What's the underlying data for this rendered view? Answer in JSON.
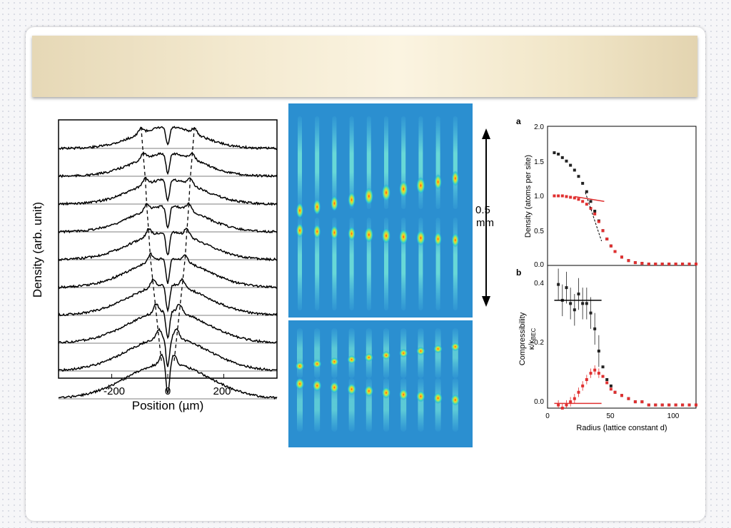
{
  "title": "",
  "left_panel": {
    "ylabel": "Density (arb. unit)",
    "xlabel": "Position (µm)",
    "xticks": [
      "-200",
      "0",
      "200"
    ]
  },
  "middle_panel": {
    "scale_value": "0.5",
    "scale_unit": "mm"
  },
  "right_panel": {
    "panel_a_label": "a",
    "panel_b_label": "b",
    "ylabel_a": "Density (atoms per site)",
    "ylabel_b_line1": "Compressibility",
    "ylabel_b_line2": "κ/κ",
    "ylabel_b_sub": "BEC",
    "xlabel": "Radius (lattice constant d)",
    "yticks_a": [
      "2.0",
      "1.5",
      "1.0",
      "0.5",
      "0.0"
    ],
    "yticks_b": [
      "0.4",
      "0.2",
      "0.0"
    ],
    "xticks": [
      "0",
      "50",
      "100"
    ]
  },
  "chart_data": [
    {
      "type": "line",
      "xlabel": "Position (µm)",
      "ylabel": "Density (arb. unit)",
      "xlim": [
        -390,
        390
      ],
      "xticks": [
        -200,
        0,
        200
      ],
      "n_profiles": 10,
      "peak_positions_um": [
        95,
        88,
        80,
        75,
        68,
        62,
        52,
        42,
        32,
        22
      ]
    },
    {
      "type": "scatter",
      "panel": "a",
      "xlabel": "Radius (lattice constant d)",
      "ylabel": "Density (atoms per site)",
      "xlim": [
        0,
        110
      ],
      "ylim": [
        0,
        2.0
      ],
      "series": [
        {
          "color": "#222222",
          "x": [
            5,
            8,
            11,
            14,
            17,
            20,
            23,
            26,
            29,
            32,
            35,
            38,
            41,
            44,
            47,
            50,
            55,
            60,
            65,
            70,
            75,
            80,
            85,
            90,
            95,
            100,
            105,
            110
          ],
          "y": [
            1.62,
            1.6,
            1.55,
            1.5,
            1.44,
            1.37,
            1.28,
            1.18,
            1.06,
            0.92,
            0.78,
            0.64,
            0.5,
            0.38,
            0.28,
            0.2,
            0.12,
            0.07,
            0.04,
            0.03,
            0.02,
            0.02,
            0.02,
            0.02,
            0.02,
            0.02,
            0.02,
            0.02
          ]
        },
        {
          "color": "#e03030",
          "x": [
            5,
            8,
            11,
            14,
            17,
            20,
            23,
            26,
            29,
            32,
            35,
            38,
            41,
            44,
            47,
            50,
            55,
            60,
            65,
            70,
            75,
            80,
            85,
            90,
            95,
            100,
            105,
            110
          ],
          "y": [
            1.0,
            1.0,
            1.0,
            0.99,
            0.98,
            0.97,
            0.95,
            0.92,
            0.88,
            0.82,
            0.74,
            0.63,
            0.5,
            0.38,
            0.28,
            0.2,
            0.12,
            0.07,
            0.04,
            0.03,
            0.02,
            0.02,
            0.02,
            0.02,
            0.02,
            0.02,
            0.02,
            0.02
          ]
        }
      ]
    },
    {
      "type": "scatter",
      "panel": "b",
      "xlabel": "Radius (lattice constant d)",
      "xlim": [
        0,
        110
      ],
      "ylim": [
        0,
        0.45
      ],
      "series": [
        {
          "color": "#222222",
          "x": [
            8,
            11,
            14,
            17,
            20,
            23,
            26,
            29,
            32,
            35,
            38,
            41,
            44,
            47,
            50,
            55,
            60,
            65,
            70,
            75,
            80,
            85,
            90,
            95,
            100,
            105,
            110
          ],
          "y": [
            0.39,
            0.34,
            0.38,
            0.33,
            0.31,
            0.36,
            0.33,
            0.33,
            0.3,
            0.25,
            0.18,
            0.13,
            0.09,
            0.07,
            0.05,
            0.04,
            0.03,
            0.02,
            0.02,
            0.01,
            0.01,
            0.01,
            0.01,
            0.01,
            0.01,
            0.01,
            0.01
          ]
        },
        {
          "color": "#e03030",
          "x": [
            8,
            11,
            14,
            17,
            20,
            23,
            26,
            29,
            32,
            35,
            38,
            41,
            44,
            47,
            50,
            55,
            60,
            65,
            70,
            75,
            80,
            85,
            90,
            95,
            100,
            105,
            110
          ],
          "y": [
            0.01,
            0.0,
            0.01,
            0.02,
            0.03,
            0.05,
            0.07,
            0.09,
            0.11,
            0.12,
            0.11,
            0.1,
            0.08,
            0.06,
            0.05,
            0.04,
            0.03,
            0.02,
            0.02,
            0.01,
            0.01,
            0.01,
            0.01,
            0.01,
            0.01,
            0.01,
            0.01
          ]
        }
      ]
    }
  ]
}
